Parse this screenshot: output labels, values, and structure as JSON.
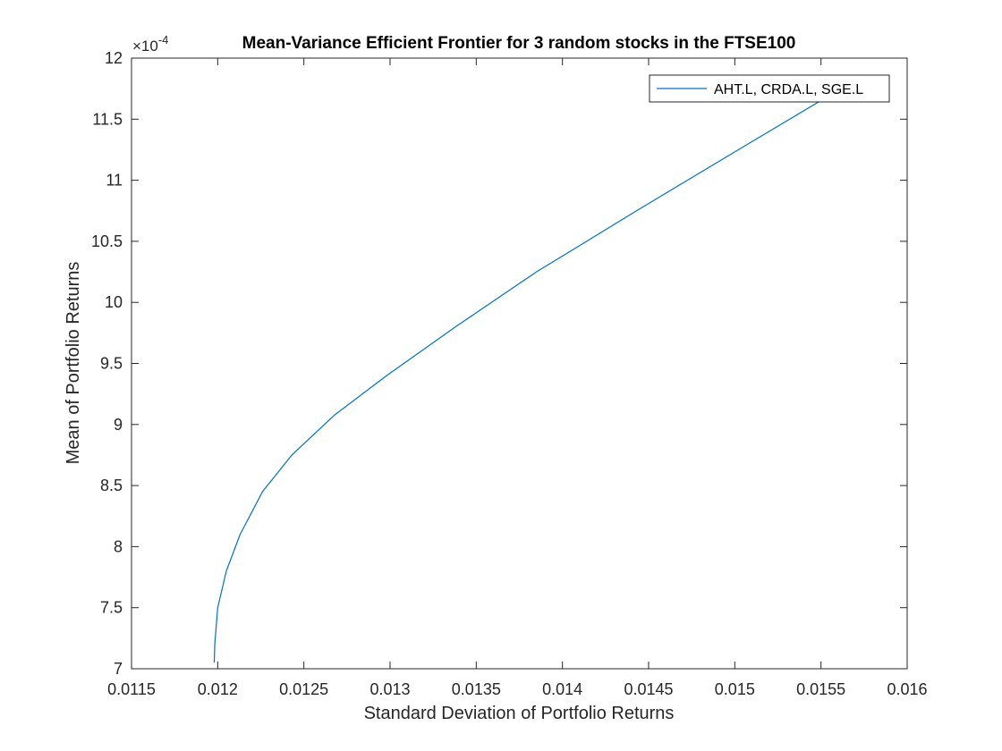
{
  "chart_data": {
    "type": "line",
    "title": "Mean-Variance Efficient Frontier for 3 random stocks in the FTSE100",
    "xlabel": "Standard Deviation of Portfolio Returns",
    "ylabel": "Mean of Portfolio Returns",
    "xlim": [
      0.0115,
      0.016
    ],
    "ylim": [
      7,
      12
    ],
    "x_ticks": [
      0.0115,
      0.012,
      0.0125,
      0.013,
      0.0135,
      0.014,
      0.0145,
      0.015,
      0.0155,
      0.016
    ],
    "x_tick_labels": [
      "0.0115",
      "0.012",
      "0.0125",
      "0.013",
      "0.0135",
      "0.014",
      "0.0145",
      "0.015",
      "0.0155",
      "0.016"
    ],
    "y_ticks": [
      7,
      7.5,
      8,
      8.5,
      9,
      9.5,
      10,
      10.5,
      11,
      11.5,
      12
    ],
    "y_tick_labels": [
      "7",
      "7.5",
      "8",
      "8.5",
      "9",
      "9.5",
      "10",
      "10.5",
      "11",
      "11.5",
      "12"
    ],
    "y_multiplier_base": "×10",
    "y_multiplier_exp": "-4",
    "grid": false,
    "legend_position": "top-right",
    "series": [
      {
        "name": "AHT.L, CRDA.L, SGE.L",
        "color": "#0072BD",
        "x": [
          0.01198,
          0.011983,
          0.012,
          0.01205,
          0.01213,
          0.01226,
          0.01243,
          0.01268,
          0.01298,
          0.01338,
          0.01385,
          0.01443,
          0.01508,
          0.01558
        ],
        "y": [
          7.05,
          7.2,
          7.5,
          7.8,
          8.1,
          8.45,
          8.75,
          9.08,
          9.4,
          9.8,
          10.25,
          10.75,
          11.3,
          11.72
        ]
      }
    ]
  }
}
